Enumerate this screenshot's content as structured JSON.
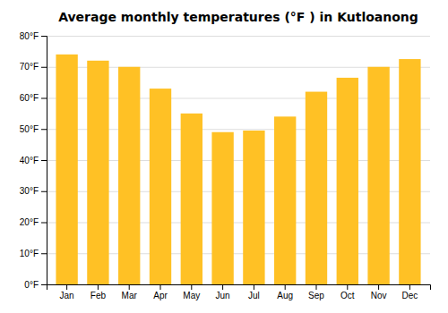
{
  "chart_data": {
    "type": "bar",
    "title": "Average monthly temperatures (°F ) in Kutloanong",
    "categories": [
      "Jan",
      "Feb",
      "Mar",
      "Apr",
      "May",
      "Jun",
      "Jul",
      "Aug",
      "Sep",
      "Oct",
      "Nov",
      "Dec"
    ],
    "values": [
      74,
      72,
      70,
      63,
      55,
      49,
      49.5,
      54,
      62,
      66.5,
      70,
      72.5
    ],
    "color": "#FFC125",
    "ylim": [
      0,
      80
    ],
    "yticks": [
      {
        "value": 0,
        "label": "0°F"
      },
      {
        "value": 10,
        "label": "10°F"
      },
      {
        "value": 20,
        "label": "20°F"
      },
      {
        "value": 30,
        "label": "30°F"
      },
      {
        "value": 40,
        "label": "40°F"
      },
      {
        "value": 50,
        "label": "50°F"
      },
      {
        "value": 60,
        "label": "60°F"
      },
      {
        "value": 70,
        "label": "70°F"
      },
      {
        "value": 80,
        "label": "80°F"
      }
    ],
    "grid": true
  }
}
